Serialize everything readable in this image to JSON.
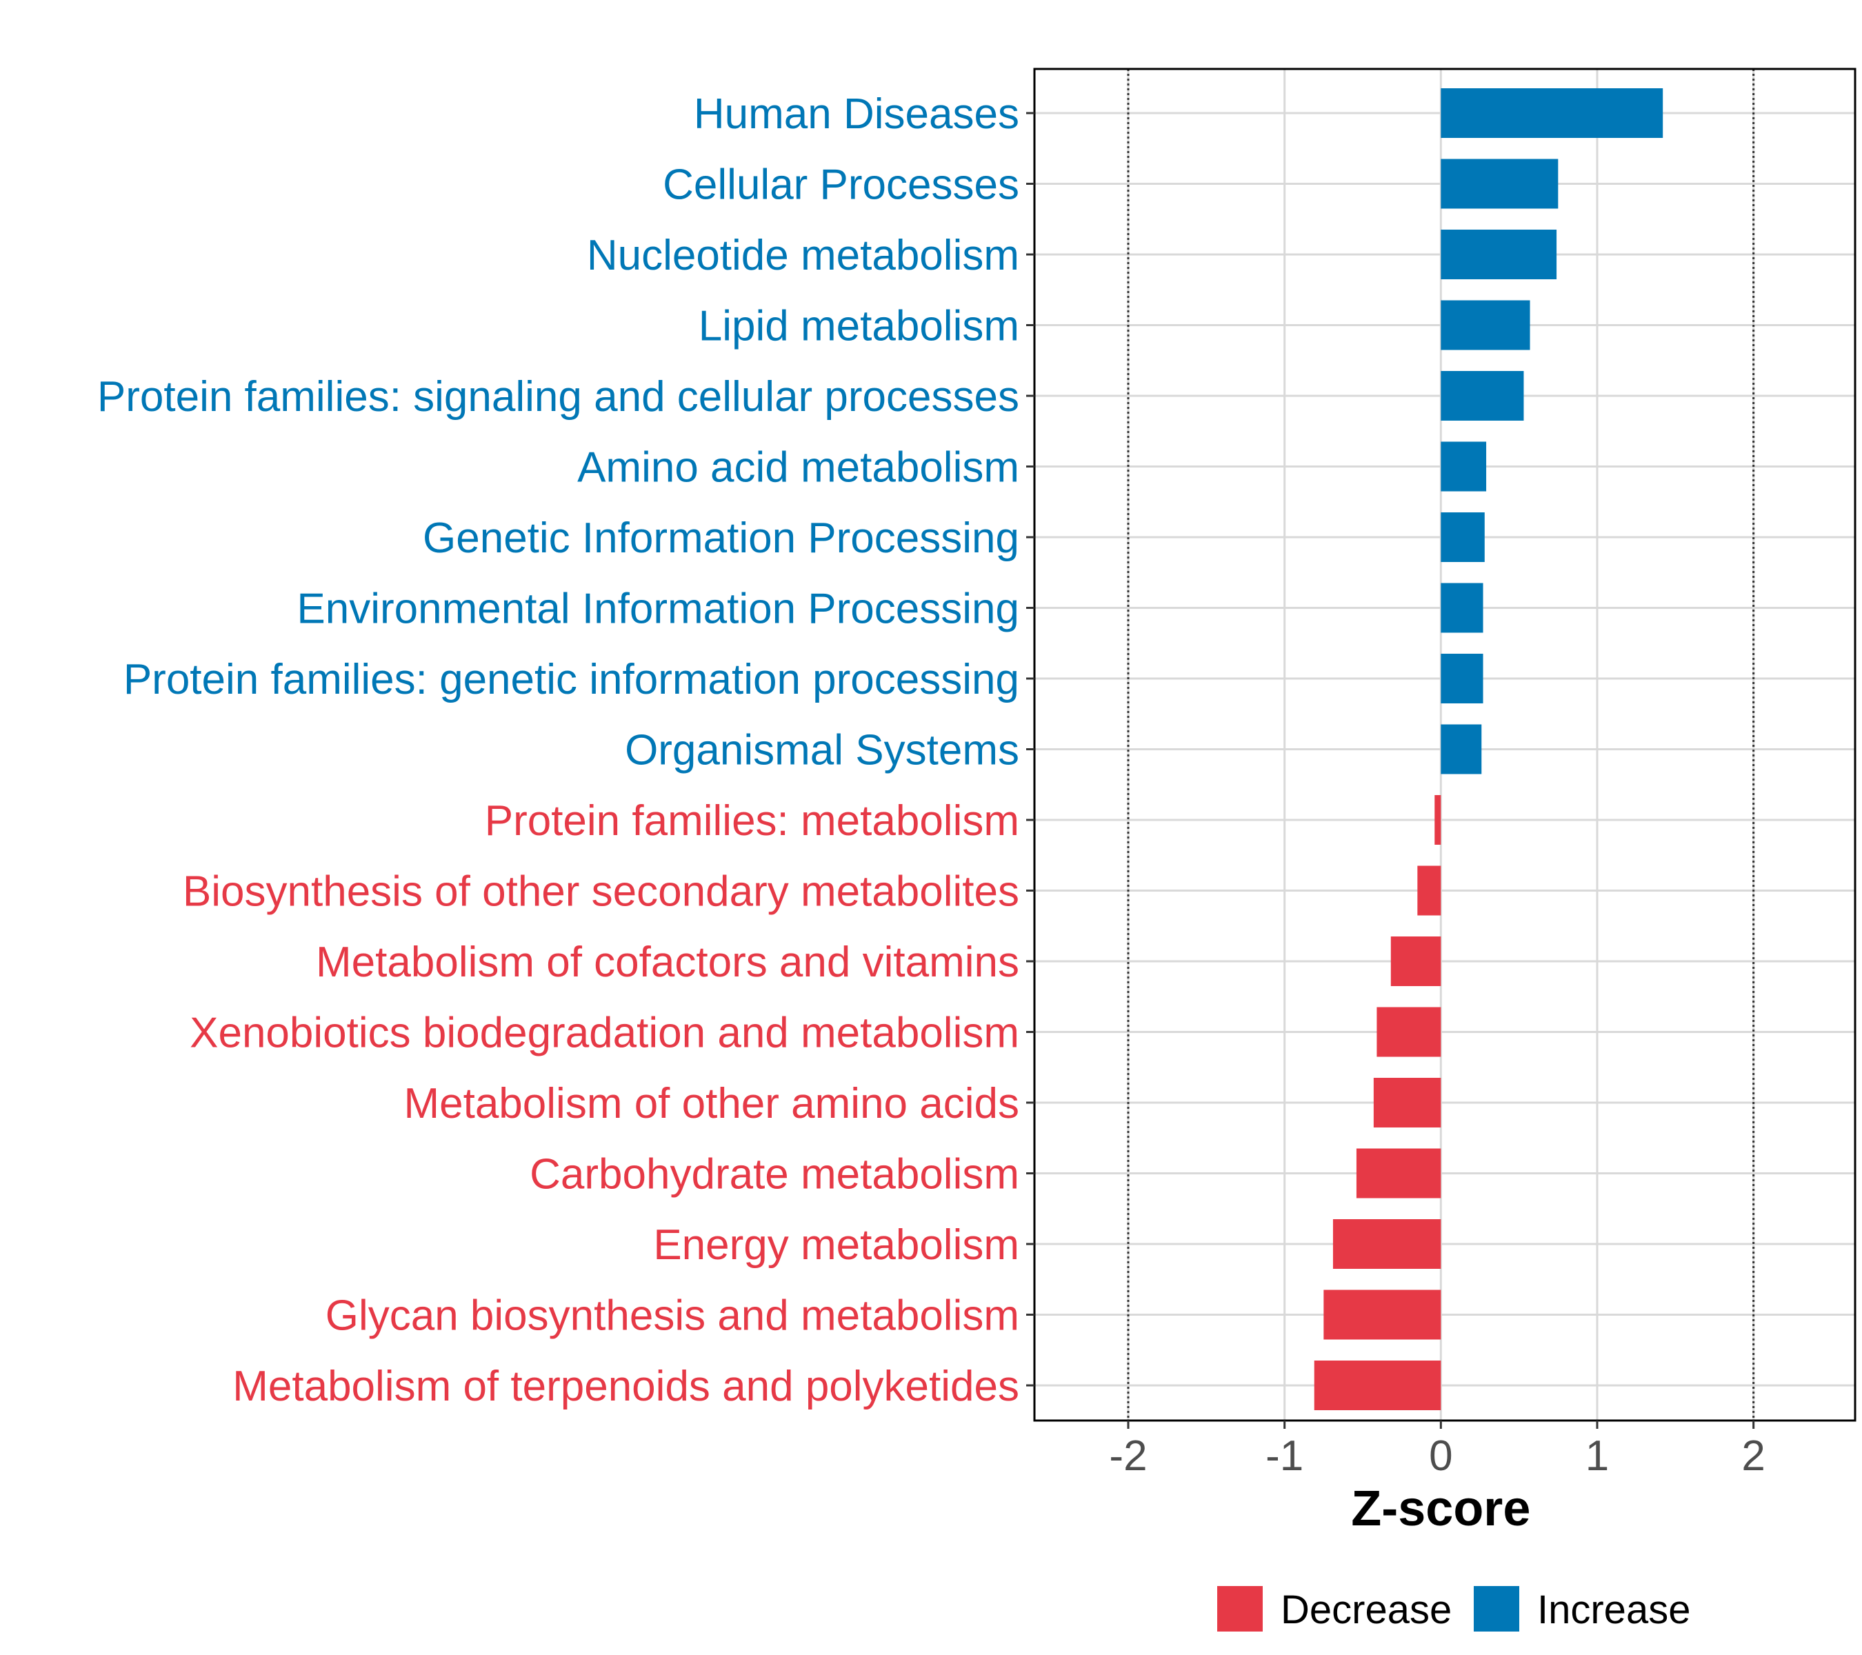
{
  "chart_data": {
    "type": "bar",
    "orientation": "horizontal",
    "xlabel": "Z-score",
    "xlim": [
      -2.6,
      2.65
    ],
    "xticks": [
      -2,
      -1,
      0,
      1,
      2
    ],
    "xtick_labels": [
      "-2",
      "-1",
      "0",
      "1",
      "2"
    ],
    "reference_lines": [
      -2,
      2
    ],
    "grid": true,
    "categories": [
      "Human Diseases",
      "Cellular Processes",
      "Nucleotide metabolism",
      "Lipid metabolism",
      "Protein families: signaling and cellular processes",
      "Amino acid metabolism",
      "Genetic Information Processing",
      "Environmental Information Processing",
      "Protein families: genetic information processing",
      "Organismal Systems",
      "Protein families: metabolism",
      "Biosynthesis of other secondary metabolites",
      "Metabolism of cofactors and vitamins",
      "Xenobiotics biodegradation and metabolism",
      "Metabolism of other amino acids",
      "Carbohydrate metabolism",
      "Energy metabolism",
      "Glycan biosynthesis and metabolism",
      "Metabolism of terpenoids and polyketides"
    ],
    "values": [
      1.42,
      0.75,
      0.74,
      0.57,
      0.53,
      0.29,
      0.28,
      0.27,
      0.27,
      0.26,
      -0.04,
      -0.15,
      -0.32,
      -0.41,
      -0.43,
      -0.54,
      -0.69,
      -0.75,
      -0.81
    ],
    "series": [
      {
        "name": "Decrease",
        "color": "#E63946"
      },
      {
        "name": "Increase",
        "color": "#0077B6"
      }
    ],
    "legend_position": "bottom"
  }
}
